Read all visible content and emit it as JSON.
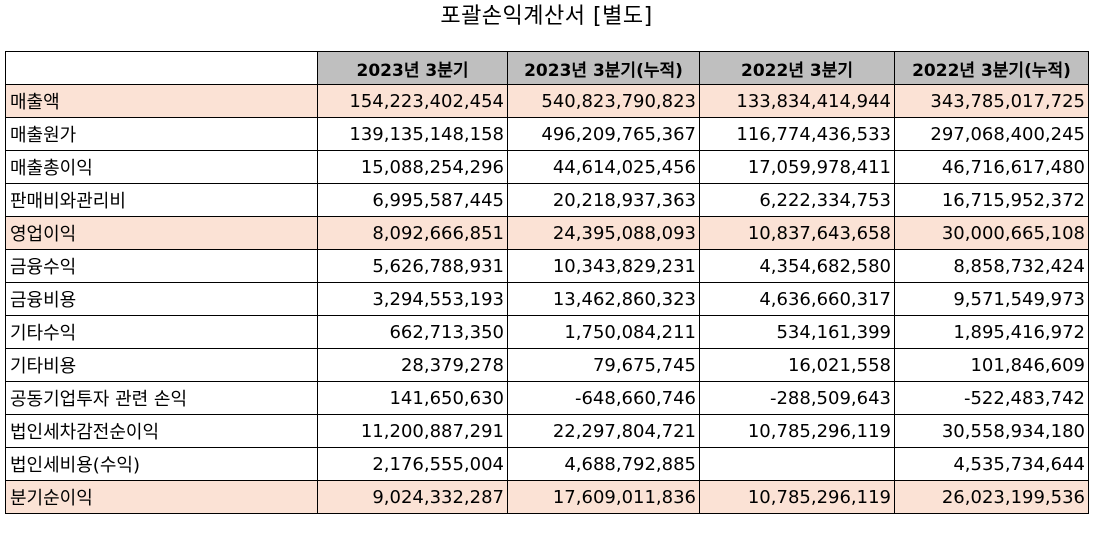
{
  "title": "포괄손익계산서 [별도]",
  "columns": [
    "2023년 3분기",
    "2023년 3분기(누적)",
    "2022년 3분기",
    "2022년 3분기(누적)"
  ],
  "highlight_color": "#fbe2d5",
  "header_color": "#bfbfbf",
  "rows": [
    {
      "label": "매출액",
      "highlight": true,
      "values": [
        "154,223,402,454",
        "540,823,790,823",
        "133,834,414,944",
        "343,785,017,725"
      ]
    },
    {
      "label": "매출원가",
      "highlight": false,
      "values": [
        "139,135,148,158",
        "496,209,765,367",
        "116,774,436,533",
        "297,068,400,245"
      ]
    },
    {
      "label": "매출총이익",
      "highlight": false,
      "values": [
        "15,088,254,296",
        "44,614,025,456",
        "17,059,978,411",
        "46,716,617,480"
      ]
    },
    {
      "label": "판매비와관리비",
      "highlight": false,
      "values": [
        "6,995,587,445",
        "20,218,937,363",
        "6,222,334,753",
        "16,715,952,372"
      ]
    },
    {
      "label": "영업이익",
      "highlight": true,
      "values": [
        "8,092,666,851",
        "24,395,088,093",
        "10,837,643,658",
        "30,000,665,108"
      ]
    },
    {
      "label": "금융수익",
      "highlight": false,
      "values": [
        "5,626,788,931",
        "10,343,829,231",
        "4,354,682,580",
        "8,858,732,424"
      ]
    },
    {
      "label": "금융비용",
      "highlight": false,
      "values": [
        "3,294,553,193",
        "13,462,860,323",
        "4,636,660,317",
        "9,571,549,973"
      ]
    },
    {
      "label": "기타수익",
      "highlight": false,
      "values": [
        "662,713,350",
        "1,750,084,211",
        "534,161,399",
        "1,895,416,972"
      ]
    },
    {
      "label": "기타비용",
      "highlight": false,
      "values": [
        "28,379,278",
        "79,675,745",
        "16,021,558",
        "101,846,609"
      ]
    },
    {
      "label": "공동기업투자 관련 손익",
      "highlight": false,
      "values": [
        "141,650,630",
        "-648,660,746",
        "-288,509,643",
        "-522,483,742"
      ]
    },
    {
      "label": "법인세차감전순이익",
      "highlight": false,
      "values": [
        "11,200,887,291",
        "22,297,804,721",
        "10,785,296,119",
        "30,558,934,180"
      ]
    },
    {
      "label": "법인세비용(수익)",
      "highlight": false,
      "values": [
        "2,176,555,004",
        "4,688,792,885",
        "",
        "4,535,734,644"
      ]
    },
    {
      "label": "분기순이익",
      "highlight": true,
      "values": [
        "9,024,332,287",
        "17,609,011,836",
        "10,785,296,119",
        "26,023,199,536"
      ]
    }
  ]
}
